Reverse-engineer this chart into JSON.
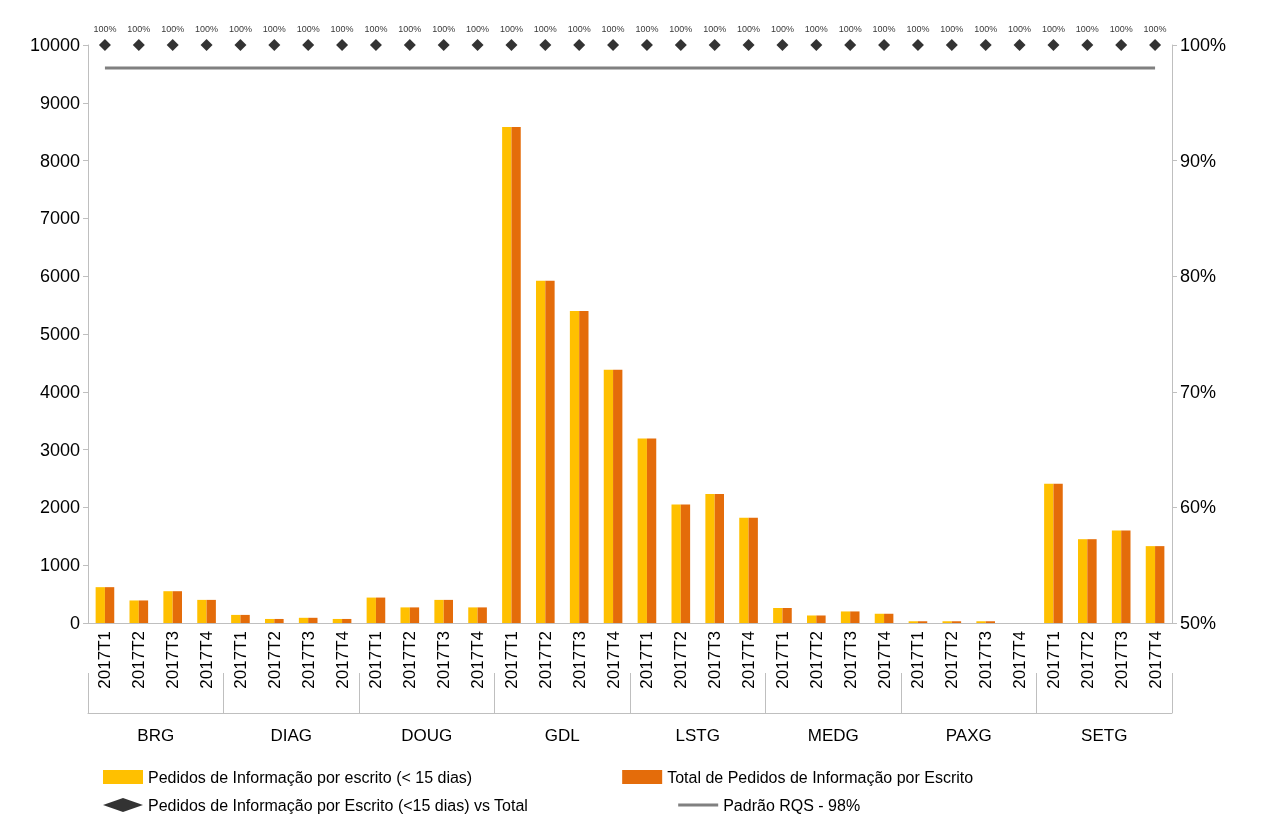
{
  "chart_data": {
    "type": "bar",
    "categories": [
      "2017T1",
      "2017T2",
      "2017T3",
      "2017T4",
      "2017T1",
      "2017T2",
      "2017T3",
      "2017T4",
      "2017T1",
      "2017T2",
      "2017T3",
      "2017T4",
      "2017T1",
      "2017T2",
      "2017T3",
      "2017T4",
      "2017T1",
      "2017T2",
      "2017T3",
      "2017T4",
      "2017T1",
      "2017T2",
      "2017T3",
      "2017T4",
      "2017T1",
      "2017T2",
      "2017T3",
      "2017T4",
      "2017T1",
      "2017T2",
      "2017T3",
      "2017T4"
    ],
    "annotations": [
      "BRG",
      "DIAG",
      "DOUG",
      "GDL",
      "LSTG",
      "MEDG",
      "PAXG",
      "SETG"
    ],
    "series": [
      {
        "name": "Pedidos de Informação por escrito (< 15 dias)",
        "color": "#ffc000",
        "values": [
          620,
          390,
          550,
          400,
          140,
          70,
          90,
          70,
          440,
          270,
          400,
          270,
          8580,
          5920,
          5400,
          4380,
          3190,
          2050,
          2230,
          1820,
          260,
          130,
          200,
          160,
          30,
          30,
          30,
          0,
          2410,
          1450,
          1600,
          1330
        ]
      },
      {
        "name": "Total de Pedidos de Informação por Escrito",
        "color": "#e46c0a",
        "values": [
          620,
          390,
          550,
          400,
          140,
          70,
          90,
          70,
          440,
          270,
          400,
          270,
          8580,
          5920,
          5400,
          4380,
          3190,
          2050,
          2230,
          1820,
          260,
          130,
          200,
          160,
          30,
          30,
          30,
          0,
          2410,
          1450,
          1600,
          1330
        ]
      },
      {
        "name": "Pedidos de Informação por Escrito (<15 dias) vs Total",
        "type": "scatter",
        "axis": "y2",
        "marker": "diamond",
        "color": "#000000",
        "values": [
          100,
          100,
          100,
          100,
          100,
          100,
          100,
          100,
          100,
          100,
          100,
          100,
          100,
          100,
          100,
          100,
          100,
          100,
          100,
          100,
          100,
          100,
          100,
          100,
          100,
          100,
          100,
          100,
          100,
          100,
          100,
          100
        ],
        "value_labels": [
          "100%",
          "100%",
          "100%",
          "100%",
          "100%",
          "100%",
          "100%",
          "100%",
          "100%",
          "100%",
          "100%",
          "100%",
          "100%",
          "100%",
          "100%",
          "100%",
          "100%",
          "100%",
          "100%",
          "100%",
          "100%",
          "100%",
          "100%",
          "100%",
          "100%",
          "100%",
          "100%",
          "100%",
          "100%",
          "100%",
          "100%",
          "100%"
        ]
      },
      {
        "name": "Padrão RQS - 98%",
        "type": "line",
        "axis": "y2",
        "marker": "none",
        "color": "#808080",
        "values": [
          98,
          98,
          98,
          98,
          98,
          98,
          98,
          98,
          98,
          98,
          98,
          98,
          98,
          98,
          98,
          98,
          98,
          98,
          98,
          98,
          98,
          98,
          98,
          98,
          98,
          98,
          98,
          98,
          98,
          98,
          98,
          98
        ]
      }
    ],
    "ylim": [
      0,
      10000
    ],
    "yticks": [
      0,
      1000,
      2000,
      3000,
      4000,
      5000,
      6000,
      7000,
      8000,
      9000,
      10000
    ],
    "y2lim": [
      50,
      100
    ],
    "y2ticks": [
      {
        "value": 50,
        "label": "50%"
      },
      {
        "value": 60,
        "label": "60%"
      },
      {
        "value": 70,
        "label": "70%"
      },
      {
        "value": 80,
        "label": "80%"
      },
      {
        "value": 90,
        "label": "90%"
      },
      {
        "value": 100,
        "label": "100%"
      }
    ],
    "grid": false,
    "legend": "bottom"
  }
}
